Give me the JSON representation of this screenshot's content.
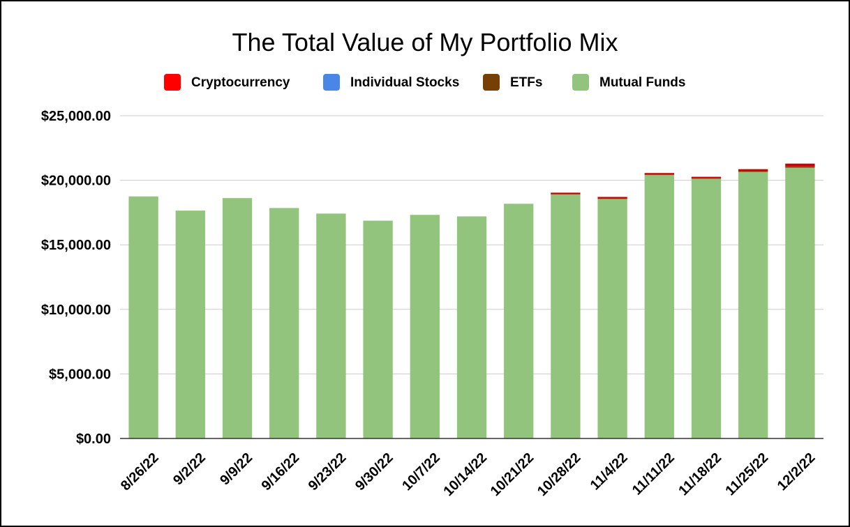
{
  "chart_data": {
    "type": "bar",
    "stacked": true,
    "title": "The Total Value of My Portfolio Mix",
    "xlabel": "",
    "ylabel": "",
    "ylim": [
      0,
      25000
    ],
    "y_ticks": [
      0,
      5000,
      10000,
      15000,
      20000,
      25000
    ],
    "y_tick_labels": [
      "$0.00",
      "$5,000.00",
      "$10,000.00",
      "$15,000.00",
      "$20,000.00",
      "$25,000.00"
    ],
    "grid": true,
    "legend_position": "top",
    "categories": [
      "8/26/22",
      "9/2/22",
      "9/9/22",
      "9/16/22",
      "9/23/22",
      "9/30/22",
      "10/7/22",
      "10/14/22",
      "10/21/22",
      "10/28/22",
      "11/4/22",
      "11/11/22",
      "11/18/22",
      "11/25/22",
      "12/2/22"
    ],
    "series": [
      {
        "name": "Mutual Funds",
        "color": "#93c47d",
        "values": [
          18750,
          17650,
          18620,
          17850,
          17420,
          16870,
          17320,
          17200,
          18180,
          18920,
          18580,
          20420,
          20130,
          20650,
          20980
        ]
      },
      {
        "name": "ETFs",
        "color": "#783f04",
        "values": [
          0,
          0,
          0,
          0,
          0,
          0,
          0,
          0,
          0,
          20,
          20,
          30,
          30,
          60,
          90
        ]
      },
      {
        "name": "Individual Stocks",
        "color": "#4a86e8",
        "values": [
          0,
          0,
          0,
          0,
          0,
          0,
          0,
          0,
          0,
          0,
          0,
          0,
          0,
          0,
          0
        ]
      },
      {
        "name": "Cryptocurrency",
        "color": "#cc0000",
        "values": [
          0,
          0,
          0,
          0,
          0,
          0,
          0,
          0,
          0,
          100,
          110,
          110,
          110,
          150,
          220
        ]
      }
    ],
    "legend": [
      {
        "name": "Cryptocurrency",
        "color": "#ff0000"
      },
      {
        "name": "Individual Stocks",
        "color": "#4a86e8"
      },
      {
        "name": "ETFs",
        "color": "#783f04"
      },
      {
        "name": "Mutual Funds",
        "color": "#93c47d"
      }
    ]
  }
}
